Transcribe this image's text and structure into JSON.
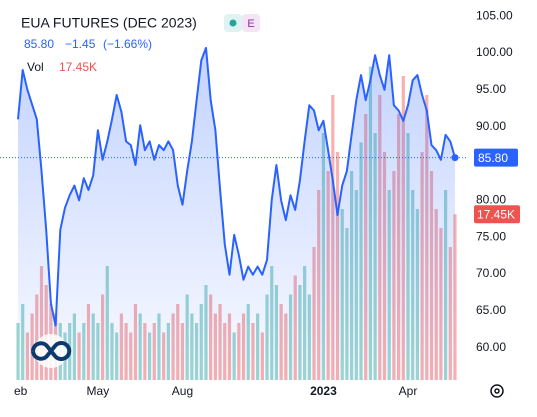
{
  "chart_data": {
    "type": "line",
    "title": "EUA FUTURES (DEC 2023)",
    "badge": "E",
    "quote": {
      "change": "−1.45",
      "change_pct": "(−1.66%)"
    },
    "last_price": {
      "value": 85.8,
      "label": "85.80"
    },
    "color": "#2962ff",
    "categories": [
      "eb",
      null,
      null,
      null,
      null,
      null,
      null,
      null,
      null,
      null,
      null,
      null,
      null,
      null,
      null,
      null,
      null,
      "May",
      null,
      null,
      null,
      null,
      null,
      null,
      null,
      null,
      null,
      null,
      null,
      null,
      null,
      null,
      null,
      null,
      null,
      "Aug",
      null,
      null,
      null,
      null,
      null,
      null,
      null,
      null,
      null,
      null,
      null,
      null,
      null,
      null,
      null,
      null,
      null,
      null,
      null,
      null,
      null,
      null,
      null,
      null,
      null,
      null,
      null,
      null,
      null,
      "2023",
      null,
      null,
      null,
      null,
      null,
      null,
      null,
      null,
      null,
      null,
      null,
      null,
      null,
      null,
      null,
      null,
      null,
      "Apr",
      null,
      null,
      null,
      null,
      null,
      null,
      null,
      null,
      null,
      null
    ],
    "values": [
      91,
      97.7,
      95,
      93,
      91,
      84,
      76,
      66,
      63,
      76,
      79,
      80.7,
      82,
      80,
      83,
      81.4,
      83.4,
      89.5,
      85.5,
      88,
      91,
      94.3,
      92,
      88,
      87.5,
      84.8,
      90.2,
      86.8,
      88,
      85.5,
      87.5,
      86.8,
      88,
      86.8,
      82,
      79.4,
      84,
      88,
      93.6,
      99,
      100.7,
      93.6,
      89.5,
      81.4,
      74,
      69.9,
      75.3,
      72.6,
      69.2,
      71,
      69.9,
      71,
      69.9,
      71.9,
      80,
      84.8,
      80,
      77.3,
      80.7,
      78.7,
      82.7,
      88,
      92.9,
      92.2,
      89.5,
      90.8,
      86.8,
      82.7,
      78,
      82,
      84,
      88.9,
      93.6,
      97,
      93.6,
      96.3,
      99.7,
      97,
      95,
      99.7,
      92.9,
      92.2,
      90.8,
      92.9,
      96.3,
      97,
      94.3,
      92.2,
      87.5,
      86.8,
      85.5,
      88.9,
      88,
      85.8
    ],
    "ylim": [
      55.6,
      107.2
    ],
    "yticks": [
      {
        "value": 60,
        "label": "60.00"
      },
      {
        "value": 65,
        "label": "65.00"
      },
      {
        "value": 70,
        "label": "70.00"
      },
      {
        "value": 75,
        "label": "75.00"
      },
      {
        "value": 80,
        "label": "80.00"
      },
      {
        "value": 85,
        "label": "85.00"
      },
      {
        "value": 90,
        "label": "90.00"
      },
      {
        "value": 95,
        "label": "95.00"
      },
      {
        "value": 100,
        "label": "100.00"
      },
      {
        "value": 105,
        "label": "105.00"
      }
    ],
    "grid": false,
    "volume": {
      "name": "Vol",
      "up_color": "#26a69a",
      "down_color": "#ef5350",
      "last": {
        "value": 17.45,
        "label": "17.45K"
      },
      "values": [
        6,
        8,
        5,
        7,
        9,
        12,
        10,
        8,
        7,
        6,
        5,
        6,
        7,
        5,
        6,
        8,
        7,
        6,
        9,
        12,
        6,
        5,
        7,
        6,
        5,
        8,
        7,
        6,
        5,
        6,
        7,
        5,
        6,
        7,
        8,
        6,
        9,
        7,
        6,
        8,
        10,
        9,
        7,
        8,
        6,
        7,
        5,
        6,
        7,
        8,
        6,
        7,
        5,
        9,
        12,
        10,
        8,
        7,
        9,
        11,
        10,
        12,
        9,
        14,
        20,
        26,
        22,
        30,
        24,
        18,
        16,
        22,
        20,
        25,
        28,
        33,
        26,
        30,
        24,
        20,
        22,
        28,
        32,
        26,
        20,
        18,
        24,
        30,
        22,
        18,
        16,
        20,
        14,
        17.45
      ]
    },
    "y2lim": [
      0,
      40
    ]
  }
}
